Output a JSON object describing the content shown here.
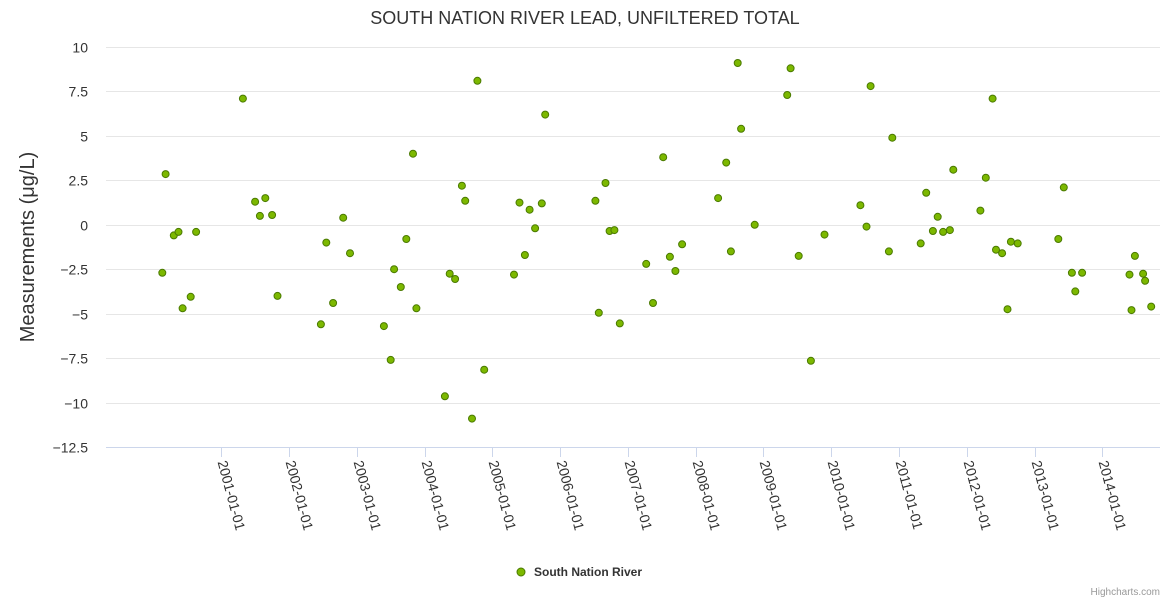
{
  "chart_data": {
    "type": "scatter",
    "title": "SOUTH NATION RIVER LEAD, UNFILTERED TOTAL",
    "xlabel": "",
    "ylabel": "Measurements (μg/L)",
    "ylim": [
      -12.5,
      10
    ],
    "yticks": [
      10,
      7.5,
      5,
      2.5,
      0,
      -2.5,
      -5,
      -7.5,
      -10,
      -12.5
    ],
    "ytick_labels": [
      "10",
      "7.5",
      "5",
      "2.5",
      "0",
      "−2.5",
      "−5",
      "−7.5",
      "−10",
      "−12.5"
    ],
    "xlim": [
      1999.3,
      2014.85
    ],
    "xticks": [
      2001,
      2002,
      2003,
      2004,
      2005,
      2006,
      2007,
      2008,
      2009,
      2010,
      2011,
      2012,
      2013,
      2014
    ],
    "xtick_labels": [
      "2001-01-01",
      "2002-01-01",
      "2003-01-01",
      "2004-01-01",
      "2005-01-01",
      "2006-01-01",
      "2007-01-01",
      "2008-01-01",
      "2009-01-01",
      "2010-01-01",
      "2011-01-01",
      "2012-01-01",
      "2013-01-01",
      "2014-01-01"
    ],
    "legend": "bottom-center",
    "series": [
      {
        "name": "South Nation River",
        "color": "#7cb800",
        "edge_color": "#4a7a00",
        "points": [
          [
            2000.13,
            -2.7
          ],
          [
            2000.18,
            2.85
          ],
          [
            2000.3,
            -0.6
          ],
          [
            2000.37,
            -0.4
          ],
          [
            2000.43,
            -4.7
          ],
          [
            2000.55,
            -4.05
          ],
          [
            2000.63,
            -0.4
          ],
          [
            2001.32,
            7.1
          ],
          [
            2001.5,
            1.3
          ],
          [
            2001.57,
            0.5
          ],
          [
            2001.65,
            1.5
          ],
          [
            2001.75,
            0.55
          ],
          [
            2001.83,
            -4.0
          ],
          [
            2002.47,
            -5.6
          ],
          [
            2002.55,
            -1.0
          ],
          [
            2002.65,
            -4.4
          ],
          [
            2002.8,
            0.4
          ],
          [
            2002.9,
            -1.6
          ],
          [
            2003.4,
            -5.7
          ],
          [
            2003.5,
            -7.6
          ],
          [
            2003.55,
            -2.5
          ],
          [
            2003.65,
            -3.5
          ],
          [
            2003.73,
            -0.8
          ],
          [
            2003.83,
            4.0
          ],
          [
            2003.88,
            -4.7
          ],
          [
            2004.3,
            -9.65
          ],
          [
            2004.37,
            -2.75
          ],
          [
            2004.45,
            -3.05
          ],
          [
            2004.55,
            2.2
          ],
          [
            2004.6,
            1.35
          ],
          [
            2004.7,
            -10.9
          ],
          [
            2004.78,
            8.1
          ],
          [
            2004.88,
            -8.15
          ],
          [
            2005.32,
            -2.8
          ],
          [
            2005.4,
            1.25
          ],
          [
            2005.48,
            -1.7
          ],
          [
            2005.55,
            0.85
          ],
          [
            2005.63,
            -0.2
          ],
          [
            2005.73,
            1.2
          ],
          [
            2005.78,
            6.2
          ],
          [
            2006.52,
            1.35
          ],
          [
            2006.57,
            -4.95
          ],
          [
            2006.67,
            2.35
          ],
          [
            2006.73,
            -0.35
          ],
          [
            2006.8,
            -0.3
          ],
          [
            2006.88,
            -5.55
          ],
          [
            2007.27,
            -2.2
          ],
          [
            2007.37,
            -4.4
          ],
          [
            2007.52,
            3.8
          ],
          [
            2007.62,
            -1.8
          ],
          [
            2007.7,
            -2.6
          ],
          [
            2007.8,
            -1.1
          ],
          [
            2008.33,
            1.5
          ],
          [
            2008.45,
            3.5
          ],
          [
            2008.52,
            -1.5
          ],
          [
            2008.62,
            9.1
          ],
          [
            2008.67,
            5.4
          ],
          [
            2008.87,
            0.0
          ],
          [
            2009.35,
            7.3
          ],
          [
            2009.4,
            8.8
          ],
          [
            2009.52,
            -1.75
          ],
          [
            2009.7,
            -7.65
          ],
          [
            2009.9,
            -0.55
          ],
          [
            2010.43,
            1.1
          ],
          [
            2010.52,
            -0.1
          ],
          [
            2010.58,
            7.8
          ],
          [
            2010.85,
            -1.5
          ],
          [
            2010.9,
            4.9
          ],
          [
            2011.32,
            -1.05
          ],
          [
            2011.4,
            1.8
          ],
          [
            2011.5,
            -0.35
          ],
          [
            2011.57,
            0.45
          ],
          [
            2011.65,
            -0.4
          ],
          [
            2011.75,
            -0.3
          ],
          [
            2011.8,
            3.1
          ],
          [
            2012.2,
            0.8
          ],
          [
            2012.28,
            2.65
          ],
          [
            2012.38,
            7.1
          ],
          [
            2012.43,
            -1.4
          ],
          [
            2012.52,
            -1.6
          ],
          [
            2012.6,
            -4.75
          ],
          [
            2012.65,
            -0.95
          ],
          [
            2012.75,
            -1.05
          ],
          [
            2013.35,
            -0.8
          ],
          [
            2013.43,
            2.1
          ],
          [
            2013.55,
            -2.7
          ],
          [
            2013.6,
            -3.75
          ],
          [
            2013.7,
            -2.7
          ],
          [
            2014.4,
            -2.8
          ],
          [
            2014.43,
            -4.8
          ],
          [
            2014.48,
            -1.75
          ],
          [
            2014.6,
            -2.75
          ],
          [
            2014.63,
            -3.15
          ],
          [
            2014.72,
            -4.6
          ]
        ]
      }
    ]
  },
  "credits": "Highcharts.com",
  "colors": {
    "series": "#7cb800",
    "series_edge": "#4a7a00",
    "grid": "#e6e6e6",
    "axis": "#ccd6eb"
  }
}
